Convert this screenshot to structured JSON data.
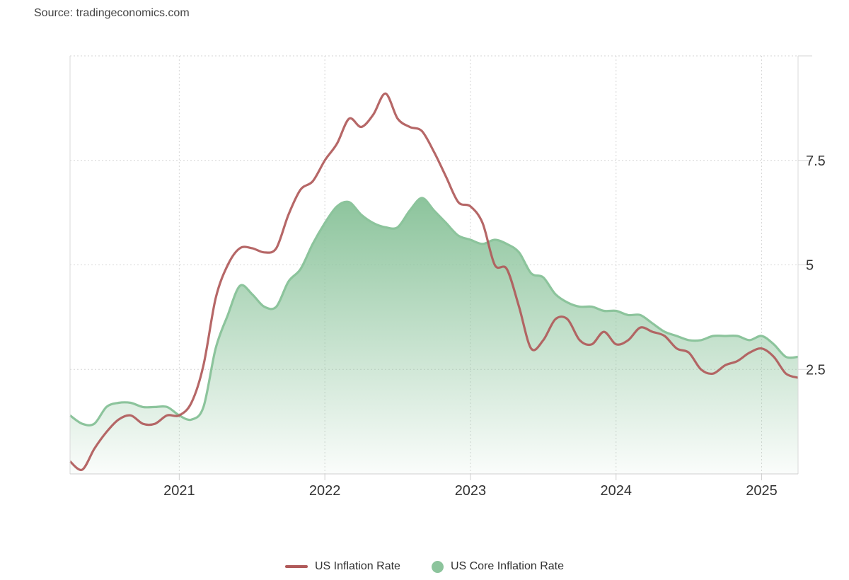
{
  "source_text": "Source: tradingeconomics.com",
  "chart_data": {
    "type": "line",
    "title": "",
    "xlabel": "",
    "ylabel": "",
    "x_start": "2020-04",
    "x_range": [
      "2020-04",
      "2025-04"
    ],
    "x_ticks": [
      "2021",
      "2022",
      "2023",
      "2024",
      "2025"
    ],
    "y_ticks": [
      "2.5",
      "5",
      "7.5"
    ],
    "ylim": [
      0,
      10
    ],
    "grid": true,
    "y_axis_side": "right",
    "legend_position": "bottom-center",
    "series": [
      {
        "name": "US Inflation Rate",
        "style": "line",
        "color": "#b05a5a",
        "values": [
          0.3,
          0.1,
          0.6,
          1.0,
          1.3,
          1.4,
          1.2,
          1.2,
          1.4,
          1.4,
          1.7,
          2.6,
          4.2,
          5.0,
          5.4,
          5.4,
          5.3,
          5.4,
          6.2,
          6.8,
          7.0,
          7.5,
          7.9,
          8.5,
          8.3,
          8.6,
          9.1,
          8.5,
          8.3,
          8.2,
          7.7,
          7.1,
          6.5,
          6.4,
          6.0,
          5.0,
          4.9,
          4.0,
          3.0,
          3.2,
          3.7,
          3.7,
          3.2,
          3.1,
          3.4,
          3.1,
          3.2,
          3.5,
          3.4,
          3.3,
          3.0,
          2.9,
          2.5,
          2.4,
          2.6,
          2.7,
          2.9,
          3.0,
          2.8,
          2.4,
          2.3
        ]
      },
      {
        "name": "US Core Inflation Rate",
        "style": "area",
        "color": "#8cc49c",
        "values": [
          1.4,
          1.2,
          1.2,
          1.6,
          1.7,
          1.7,
          1.6,
          1.6,
          1.6,
          1.4,
          1.3,
          1.6,
          3.0,
          3.8,
          4.5,
          4.3,
          4.0,
          4.0,
          4.6,
          4.9,
          5.5,
          6.0,
          6.4,
          6.5,
          6.2,
          6.0,
          5.9,
          5.9,
          6.3,
          6.6,
          6.3,
          6.0,
          5.7,
          5.6,
          5.5,
          5.6,
          5.5,
          5.3,
          4.8,
          4.7,
          4.3,
          4.1,
          4.0,
          4.0,
          3.9,
          3.9,
          3.8,
          3.8,
          3.6,
          3.4,
          3.3,
          3.2,
          3.2,
          3.3,
          3.3,
          3.3,
          3.2,
          3.3,
          3.1,
          2.8,
          2.8
        ]
      }
    ]
  },
  "legend": [
    {
      "label": "US Inflation Rate",
      "color": "#b05a5a",
      "marker": "line"
    },
    {
      "label": "US Core Inflation Rate",
      "color": "#8cc49c",
      "marker": "dot"
    }
  ]
}
